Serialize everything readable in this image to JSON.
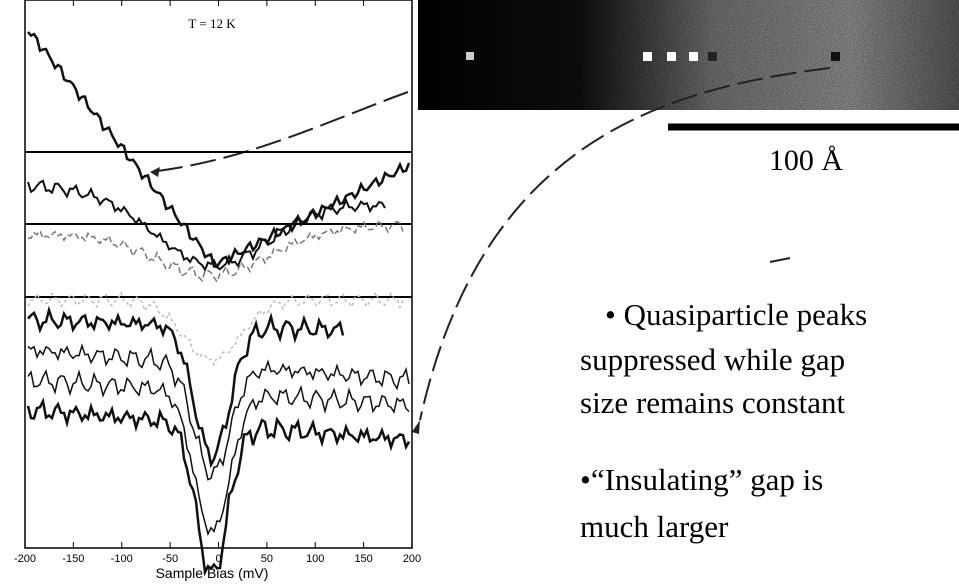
{
  "chart_data": {
    "type": "line",
    "title": "T = 12 K",
    "x_label": "Sample Bias (mV)",
    "xlim": [
      -200,
      200
    ],
    "xticks": [
      -200,
      -150,
      -100,
      -50,
      0,
      50,
      100,
      150,
      200
    ]
  },
  "image": {
    "scale_label": "100 Å"
  },
  "notes": [
    [
      "• Quasiparticle peaks",
      "suppressed while gap",
      "size remains constant"
    ],
    [
      "•“Insulating” gap is",
      "much larger"
    ]
  ]
}
